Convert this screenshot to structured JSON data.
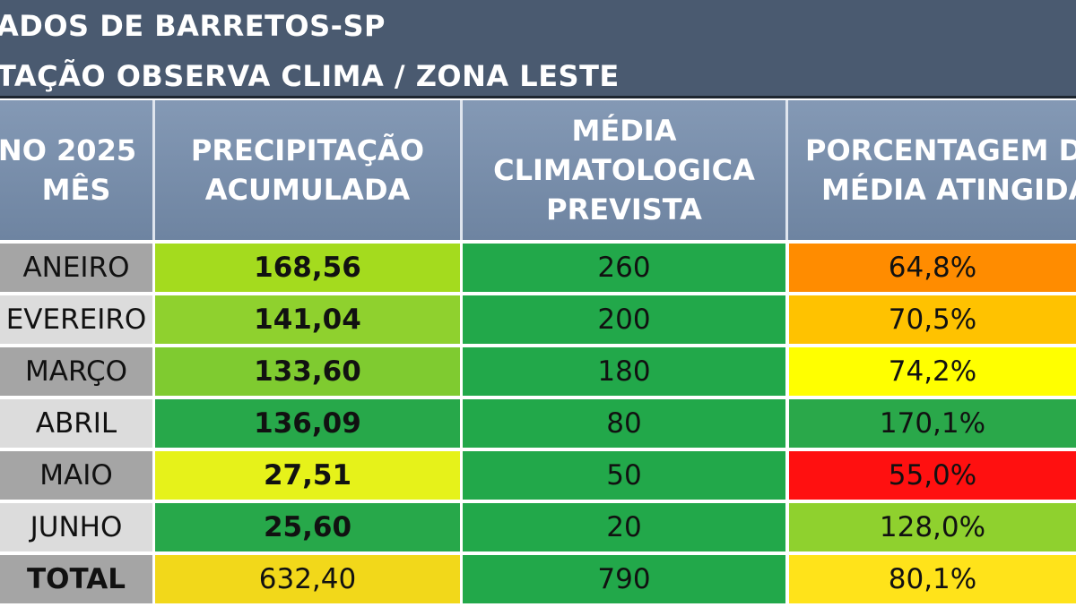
{
  "title": {
    "line1": "ADOS DE BARRETOS-SP",
    "line2": "TAÇÃO OBSERVA CLIMA / ZONA LESTE"
  },
  "headers": {
    "mes": [
      "NO 2025",
      "MÊS"
    ],
    "precipitacao": [
      "PRECIPITAÇÃO",
      "ACUMULADA"
    ],
    "media": [
      "MÉDIA",
      "CLIMATOLOGICA",
      "PREVISTA"
    ],
    "porcentagem": [
      "PORCENTAGEM D",
      "MÉDIA  ATINGIDA"
    ]
  },
  "rows": [
    {
      "mes": "ANEIRO",
      "precipitacao": "168,56",
      "media": "260",
      "porcentagem": "64,8%"
    },
    {
      "mes": "EVEREIRO",
      "precipitacao": "141,04",
      "media": "200",
      "porcentagem": "70,5%"
    },
    {
      "mes": "MARÇO",
      "precipitacao": "133,60",
      "media": "180",
      "porcentagem": "74,2%"
    },
    {
      "mes": "ABRIL",
      "precipitacao": "136,09",
      "media": "80",
      "porcentagem": "170,1%"
    },
    {
      "mes": "MAIO",
      "precipitacao": "27,51",
      "media": "50",
      "porcentagem": "55,0%"
    },
    {
      "mes": "JUNHO",
      "precipitacao": "25,60",
      "media": "20",
      "porcentagem": "128,0%"
    }
  ],
  "total": {
    "mes": "TOTAL",
    "precipitacao": "632,40",
    "media": "790",
    "porcentagem": "80,1%"
  },
  "colors": {
    "title_bg": "#4a5a70",
    "header_bg": "#7a8fab",
    "media_green": "#22a84a",
    "precip_colors": [
      "#a4db1e",
      "#8fd12e",
      "#7fcb30",
      "#27a84a",
      "#e6f21a",
      "#27a84a",
      "#f2d81a"
    ],
    "pct_colors": [
      "#ff8c00",
      "#ffc200",
      "#ffff00",
      "#2aa84a",
      "#ff1010",
      "#8fd12e",
      "#ffe31a"
    ]
  }
}
